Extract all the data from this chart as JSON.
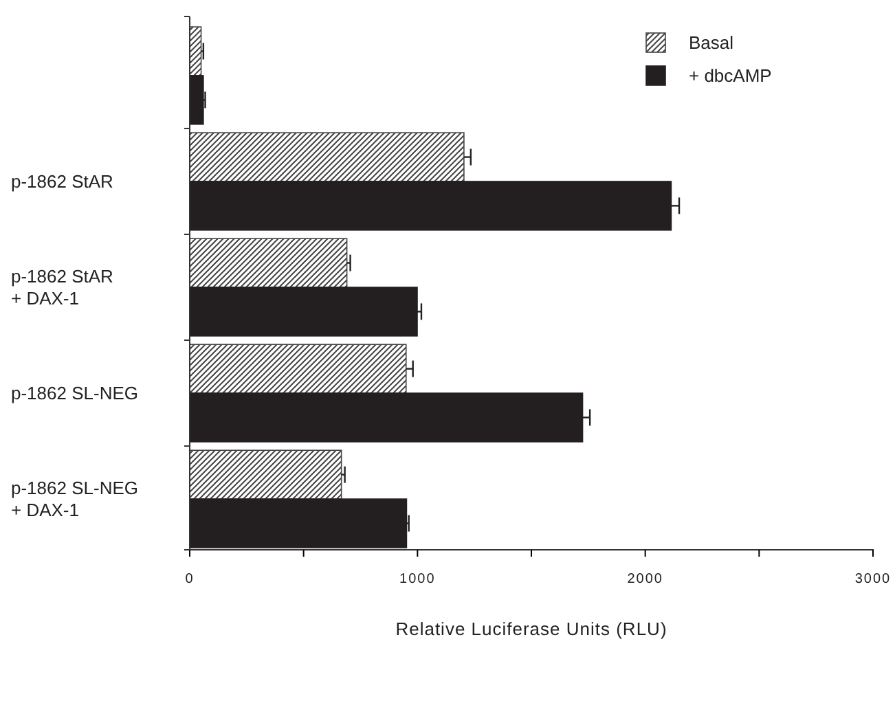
{
  "chart_data": {
    "type": "bar",
    "orientation": "horizontal",
    "xlabel": "Relative Luciferase Units (RLU)",
    "categories": [
      null,
      "p-1862  StAR",
      "p-1862  StAR\n+ DAX-1",
      "p-1862  SL-NEG",
      "p-1862  SL-NEG\n+ DAX-1"
    ],
    "series": [
      {
        "name": "Basal",
        "color": "#444444",
        "values": [
          50,
          1204,
          690,
          950,
          666
        ],
        "errors": [
          10,
          30,
          15,
          30,
          15
        ]
      },
      {
        "name": "+ dbcAMP",
        "color": "#231f20",
        "values": [
          60,
          2114,
          999,
          1725,
          952
        ],
        "errors": [
          8,
          35,
          18,
          32,
          10
        ]
      }
    ],
    "xlim": [
      0,
      3000
    ],
    "xticks": [
      0,
      {
        "value": 500,
        "label": null
      },
      1000,
      {
        "value": 1500,
        "label": null
      },
      2000,
      {
        "value": 2500,
        "label": null
      },
      3000
    ],
    "grid": false,
    "legend": "top right"
  }
}
